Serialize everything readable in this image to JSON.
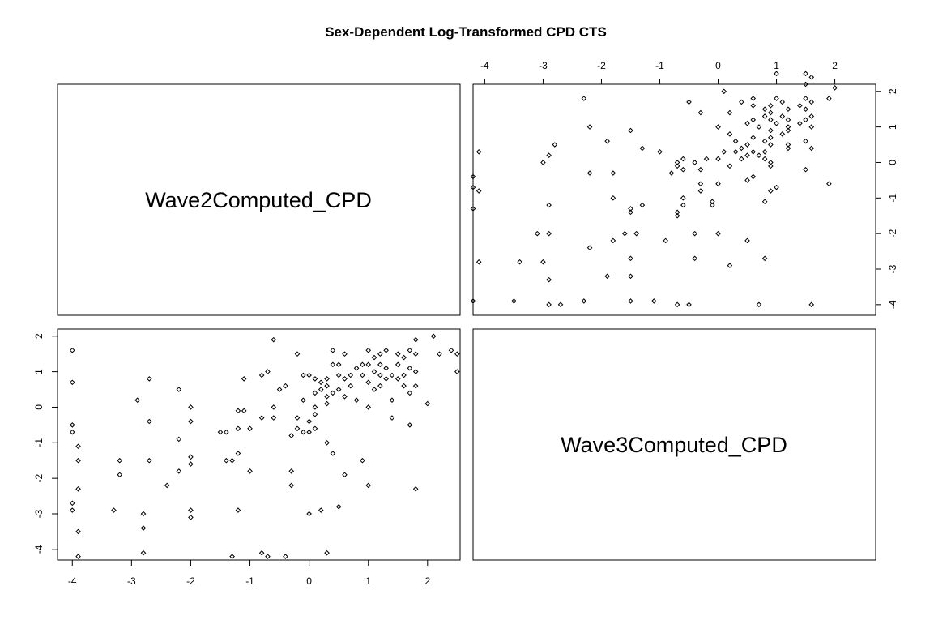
{
  "chart_data": {
    "type": "scatter",
    "layout": "pairs",
    "title": "Sex-Dependent Log-Transformed CPD CTS",
    "variables": [
      "Wave2Computed_CPD",
      "Wave3Computed_CPD"
    ],
    "xlim_wave2": [
      -4.25,
      2.55
    ],
    "xlim_wave3": [
      -4.2,
      2.7
    ],
    "ylim": [
      -4.3,
      2.2
    ],
    "ticks_wave2": [
      -4,
      -3,
      -2,
      -1,
      0,
      1,
      2
    ],
    "ticks_wave3": [
      -4,
      -3,
      -2,
      -1,
      0,
      1,
      2
    ],
    "tick_labels": [
      "-4",
      "-3",
      "-2",
      "-1",
      "0",
      "1",
      "2"
    ],
    "points": [
      {
        "x": -4.0,
        "y": -0.5
      },
      {
        "x": -4.0,
        "y": -0.7
      },
      {
        "x": -4.0,
        "y": 0.7
      },
      {
        "x": -4.0,
        "y": 1.6
      },
      {
        "x": -4.0,
        "y": -2.7
      },
      {
        "x": -4.0,
        "y": -2.9
      },
      {
        "x": -3.9,
        "y": -1.1
      },
      {
        "x": -3.9,
        "y": -1.5
      },
      {
        "x": -3.9,
        "y": -2.3
      },
      {
        "x": -3.9,
        "y": -3.5
      },
      {
        "x": -3.9,
        "y": -4.2
      },
      {
        "x": -3.3,
        "y": -2.9
      },
      {
        "x": -3.2,
        "y": -1.5
      },
      {
        "x": -3.2,
        "y": -1.9
      },
      {
        "x": -2.9,
        "y": 0.2
      },
      {
        "x": -2.8,
        "y": -3.0
      },
      {
        "x": -2.8,
        "y": -3.4
      },
      {
        "x": -2.8,
        "y": -4.1
      },
      {
        "x": -2.7,
        "y": -0.4
      },
      {
        "x": -2.7,
        "y": 0.8
      },
      {
        "x": -2.7,
        "y": -1.5
      },
      {
        "x": -2.4,
        "y": -2.2
      },
      {
        "x": -2.2,
        "y": -0.9
      },
      {
        "x": -2.2,
        "y": -1.8
      },
      {
        "x": -2.2,
        "y": 0.5
      },
      {
        "x": -2.0,
        "y": 0.0
      },
      {
        "x": -2.0,
        "y": -0.4
      },
      {
        "x": -2.0,
        "y": -1.4
      },
      {
        "x": -2.0,
        "y": -1.6
      },
      {
        "x": -2.0,
        "y": -2.9
      },
      {
        "x": -2.0,
        "y": -3.1
      },
      {
        "x": -1.5,
        "y": -0.7
      },
      {
        "x": -1.4,
        "y": -0.7
      },
      {
        "x": -1.4,
        "y": -1.5
      },
      {
        "x": -1.3,
        "y": -4.2
      },
      {
        "x": -1.3,
        "y": -1.5
      },
      {
        "x": -1.2,
        "y": -1.3
      },
      {
        "x": -1.2,
        "y": -0.1
      },
      {
        "x": -1.2,
        "y": -0.6
      },
      {
        "x": -1.2,
        "y": -2.9
      },
      {
        "x": -1.1,
        "y": 0.8
      },
      {
        "x": -1.1,
        "y": -0.1
      },
      {
        "x": -1.0,
        "y": -0.6
      },
      {
        "x": -1.0,
        "y": -1.8
      },
      {
        "x": -0.8,
        "y": 0.9
      },
      {
        "x": -0.8,
        "y": -0.3
      },
      {
        "x": -0.8,
        "y": -4.1
      },
      {
        "x": -0.7,
        "y": 1.0
      },
      {
        "x": -0.7,
        "y": -4.2
      },
      {
        "x": -0.6,
        "y": 1.9
      },
      {
        "x": -0.6,
        "y": 0.0
      },
      {
        "x": -0.6,
        "y": -0.3
      },
      {
        "x": -0.5,
        "y": 0.5
      },
      {
        "x": -0.4,
        "y": 0.6
      },
      {
        "x": -0.4,
        "y": -4.2
      },
      {
        "x": -0.3,
        "y": -1.8
      },
      {
        "x": -0.3,
        "y": -2.2
      },
      {
        "x": -0.3,
        "y": -0.8
      },
      {
        "x": -0.2,
        "y": 1.5
      },
      {
        "x": -0.2,
        "y": -0.3
      },
      {
        "x": -0.2,
        "y": -0.6
      },
      {
        "x": -0.1,
        "y": 0.9
      },
      {
        "x": -0.1,
        "y": 0.2
      },
      {
        "x": -0.1,
        "y": -0.7
      },
      {
        "x": 0.0,
        "y": 0.9
      },
      {
        "x": 0.0,
        "y": -0.4
      },
      {
        "x": 0.0,
        "y": -0.7
      },
      {
        "x": 0.0,
        "y": -3.0
      },
      {
        "x": 0.1,
        "y": 0.8
      },
      {
        "x": 0.1,
        "y": 0.4
      },
      {
        "x": 0.1,
        "y": -0.2
      },
      {
        "x": 0.1,
        "y": -0.6
      },
      {
        "x": 0.2,
        "y": 0.7
      },
      {
        "x": 0.2,
        "y": 0.5
      },
      {
        "x": 0.2,
        "y": -2.9
      },
      {
        "x": 0.3,
        "y": 0.8
      },
      {
        "x": 0.3,
        "y": 0.6
      },
      {
        "x": 0.3,
        "y": 0.1
      },
      {
        "x": 0.3,
        "y": -1.0
      },
      {
        "x": 0.3,
        "y": -4.1
      },
      {
        "x": 0.4,
        "y": 1.6
      },
      {
        "x": 0.4,
        "y": 1.2
      },
      {
        "x": 0.4,
        "y": 0.4
      },
      {
        "x": 0.4,
        "y": -1.3
      },
      {
        "x": 0.5,
        "y": 1.2
      },
      {
        "x": 0.5,
        "y": 0.9
      },
      {
        "x": 0.5,
        "y": 0.5
      },
      {
        "x": 0.5,
        "y": -2.8
      },
      {
        "x": 0.6,
        "y": 1.5
      },
      {
        "x": 0.6,
        "y": 0.8
      },
      {
        "x": 0.6,
        "y": -1.9
      },
      {
        "x": 0.7,
        "y": 0.9
      },
      {
        "x": 0.7,
        "y": 0.6
      },
      {
        "x": 0.8,
        "y": 1.1
      },
      {
        "x": 0.8,
        "y": 0.2
      },
      {
        "x": 0.9,
        "y": 1.2
      },
      {
        "x": 0.9,
        "y": 0.9
      },
      {
        "x": 0.9,
        "y": -1.5
      },
      {
        "x": 1.0,
        "y": 1.6
      },
      {
        "x": 1.0,
        "y": 1.2
      },
      {
        "x": 1.0,
        "y": 0.7
      },
      {
        "x": 1.0,
        "y": 0.0
      },
      {
        "x": 1.0,
        "y": -2.2
      },
      {
        "x": 1.1,
        "y": 1.4
      },
      {
        "x": 1.1,
        "y": 1.0
      },
      {
        "x": 1.1,
        "y": 0.5
      },
      {
        "x": 1.2,
        "y": 1.5
      },
      {
        "x": 1.2,
        "y": 1.2
      },
      {
        "x": 1.2,
        "y": 0.9
      },
      {
        "x": 1.2,
        "y": 0.6
      },
      {
        "x": 1.3,
        "y": 1.6
      },
      {
        "x": 1.3,
        "y": 1.1
      },
      {
        "x": 1.3,
        "y": 0.8
      },
      {
        "x": 1.4,
        "y": 0.9
      },
      {
        "x": 1.4,
        "y": 0.2
      },
      {
        "x": 1.4,
        "y": -0.3
      },
      {
        "x": 1.5,
        "y": 1.5
      },
      {
        "x": 1.5,
        "y": 1.2
      },
      {
        "x": 1.5,
        "y": 0.8
      },
      {
        "x": 1.6,
        "y": 1.4
      },
      {
        "x": 1.6,
        "y": 0.9
      },
      {
        "x": 1.6,
        "y": 0.6
      },
      {
        "x": 1.7,
        "y": 1.6
      },
      {
        "x": 1.7,
        "y": 1.1
      },
      {
        "x": 1.7,
        "y": 0.4
      },
      {
        "x": 1.7,
        "y": -0.5
      },
      {
        "x": 1.8,
        "y": 1.9
      },
      {
        "x": 1.8,
        "y": 1.5
      },
      {
        "x": 1.8,
        "y": 1.0
      },
      {
        "x": 1.8,
        "y": 0.6
      },
      {
        "x": 1.8,
        "y": -2.3
      },
      {
        "x": 2.0,
        "y": 0.1
      },
      {
        "x": 2.1,
        "y": 2.0
      },
      {
        "x": 2.2,
        "y": 1.5
      },
      {
        "x": 2.4,
        "y": 1.6
      },
      {
        "x": 2.5,
        "y": 1.5
      },
      {
        "x": 2.5,
        "y": 1.0
      },
      {
        "x": 0.1,
        "y": 0.0
      },
      {
        "x": 0.3,
        "y": 0.3
      },
      {
        "x": 0.6,
        "y": 0.3
      }
    ]
  }
}
